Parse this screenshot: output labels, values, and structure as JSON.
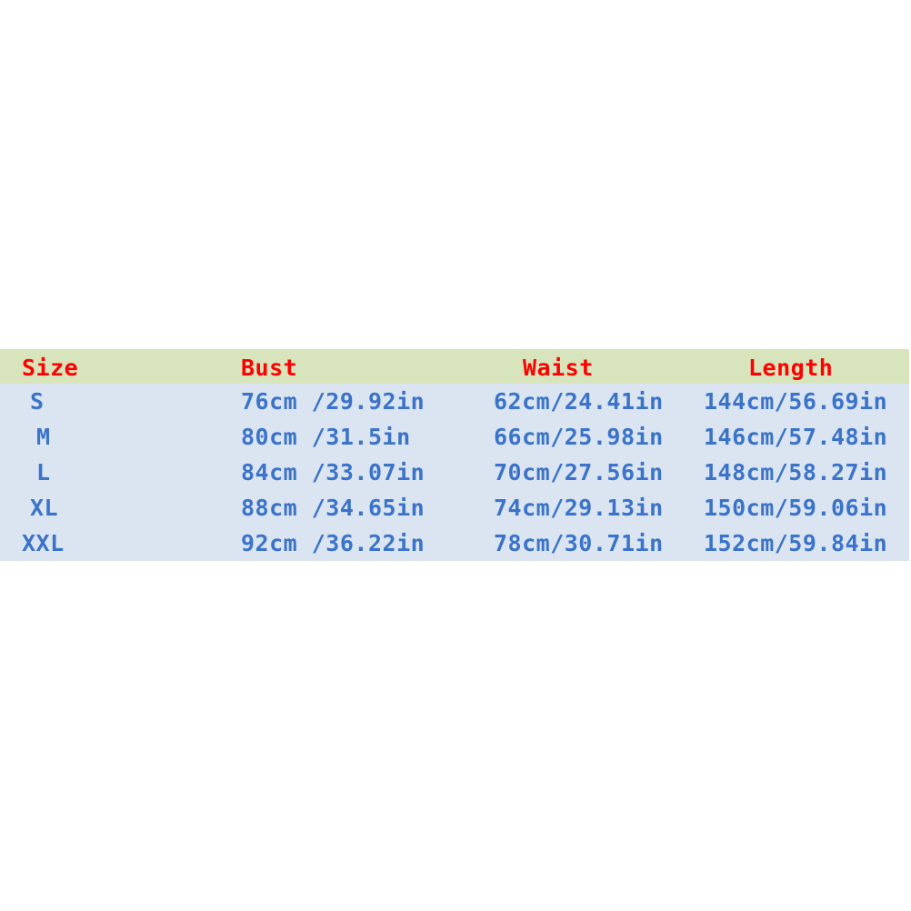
{
  "colors": {
    "header_bg": "#d8e4bc",
    "body_bg": "#dbe5f1",
    "header_text": "#ff0000",
    "body_text": "#3a73c9"
  },
  "table": {
    "headers": [
      "Size",
      "Bust",
      "Waist",
      "Length"
    ],
    "rows": [
      [
        "S",
        "76cm /29.92in",
        "62cm/24.41in",
        "144cm/56.69in"
      ],
      [
        "M",
        "80cm /31.5in",
        "66cm/25.98in",
        "146cm/57.48in"
      ],
      [
        "L",
        "84cm /33.07in",
        "70cm/27.56in",
        "148cm/58.27in"
      ],
      [
        "XL",
        "88cm /34.65in",
        "74cm/29.13in",
        "150cm/59.06in"
      ],
      [
        "XXL",
        "92cm /36.22in",
        "78cm/30.71in",
        "152cm/59.84in"
      ]
    ]
  }
}
